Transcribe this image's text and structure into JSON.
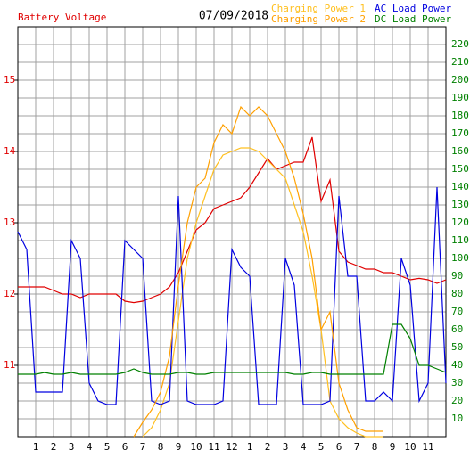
{
  "chart_data": {
    "type": "line",
    "title": "07/09/2018",
    "x": [
      0,
      0.5,
      1,
      1.5,
      2,
      2.5,
      3,
      3.5,
      4,
      4.5,
      5,
      5.5,
      6,
      6.5,
      7,
      7.5,
      8,
      8.5,
      9,
      9.5,
      10,
      10.5,
      11,
      11.5,
      12,
      12.5,
      13,
      13.5,
      14,
      14.5,
      15,
      15.5,
      16,
      16.5,
      17,
      17.5,
      18,
      18.5,
      19,
      19.5,
      20,
      20.5,
      21,
      21.5,
      22,
      22.5,
      23,
      23.5,
      24
    ],
    "xlim": [
      0,
      24
    ],
    "xticks": [
      1,
      2,
      3,
      4,
      5,
      6,
      7,
      8,
      9,
      10,
      11,
      12,
      {
        "value": 13,
        "label": "1"
      },
      {
        "value": 14,
        "label": "2"
      },
      {
        "value": 15,
        "label": "3"
      },
      {
        "value": 16,
        "label": "4"
      },
      {
        "value": 17,
        "label": "5"
      },
      {
        "value": 18,
        "label": "6"
      },
      {
        "value": 19,
        "label": "7"
      },
      {
        "value": 20,
        "label": "8"
      },
      {
        "value": 21,
        "label": "9"
      },
      {
        "value": 22,
        "label": "10"
      },
      {
        "value": 23,
        "label": "11"
      }
    ],
    "ylim": [
      10,
      15.75
    ],
    "yticks": [
      11,
      12,
      13,
      14,
      15
    ],
    "y2lim": [
      0,
      230
    ],
    "y2ticks": [
      10,
      20,
      30,
      40,
      50,
      60,
      70,
      80,
      90,
      100,
      110,
      120,
      130,
      140,
      150,
      160,
      170,
      180,
      190,
      200,
      210,
      220
    ],
    "grid": true,
    "series": [
      {
        "name": "Battery Voltage",
        "color": "#e00000",
        "values": [
          12.1,
          12.1,
          12.1,
          12.1,
          12.05,
          12.0,
          12.0,
          11.95,
          12.0,
          12.0,
          12.0,
          12.0,
          11.9,
          11.88,
          11.9,
          11.95,
          12.0,
          12.1,
          12.3,
          12.6,
          12.9,
          13.0,
          13.2,
          13.25,
          13.3,
          13.35,
          13.5,
          13.7,
          13.9,
          13.75,
          13.8,
          13.85,
          13.85,
          14.2,
          13.3,
          13.6,
          12.6,
          12.45,
          12.4,
          12.35,
          12.35,
          12.3,
          12.3,
          12.25,
          12.2,
          12.22,
          12.2,
          12.15,
          12.2
        ]
      },
      {
        "name": "Charging Power 1",
        "color": "#ffc020",
        "axis": "y2",
        "values": [
          null,
          null,
          null,
          null,
          null,
          null,
          null,
          null,
          null,
          null,
          null,
          null,
          null,
          null,
          0,
          5,
          15,
          30,
          65,
          100,
          120,
          135,
          150,
          158,
          160,
          162,
          162,
          160,
          155,
          150,
          145,
          130,
          115,
          90,
          60,
          20,
          10,
          5,
          2,
          0,
          0,
          0,
          null,
          null,
          null,
          null,
          null,
          null,
          null
        ]
      },
      {
        "name": "AC Load Power",
        "color": "#0000e0",
        "axis": "y2",
        "values": [
          115,
          105,
          25,
          25,
          25,
          25,
          110,
          100,
          30,
          20,
          18,
          18,
          110,
          105,
          100,
          20,
          18,
          20,
          135,
          20,
          18,
          18,
          18,
          20,
          105,
          95,
          90,
          18,
          18,
          18,
          100,
          85,
          18,
          18,
          18,
          20,
          135,
          90,
          90,
          20,
          20,
          25,
          20,
          100,
          85,
          20,
          30,
          140,
          30
        ]
      },
      {
        "name": "Charging Power 2",
        "color": "#ffa000",
        "axis": "y2",
        "values": [
          null,
          null,
          null,
          null,
          null,
          null,
          null,
          null,
          null,
          null,
          null,
          null,
          null,
          0,
          8,
          15,
          25,
          45,
          85,
          120,
          140,
          145,
          165,
          175,
          170,
          185,
          180,
          185,
          180,
          170,
          160,
          145,
          125,
          100,
          60,
          70,
          30,
          15,
          5,
          3,
          3,
          3,
          null,
          null,
          null,
          null,
          null,
          null,
          null
        ]
      },
      {
        "name": "DC Load Power",
        "color": "#008000",
        "axis": "y2",
        "values": [
          35,
          35,
          35,
          36,
          35,
          35,
          36,
          35,
          35,
          35,
          35,
          35,
          36,
          38,
          36,
          35,
          35,
          35,
          36,
          36,
          35,
          35,
          36,
          36,
          36,
          36,
          36,
          36,
          36,
          36,
          36,
          35,
          35,
          36,
          36,
          35,
          35,
          35,
          35,
          35,
          35,
          35,
          63,
          63,
          55,
          40,
          40,
          38,
          36
        ]
      }
    ]
  }
}
